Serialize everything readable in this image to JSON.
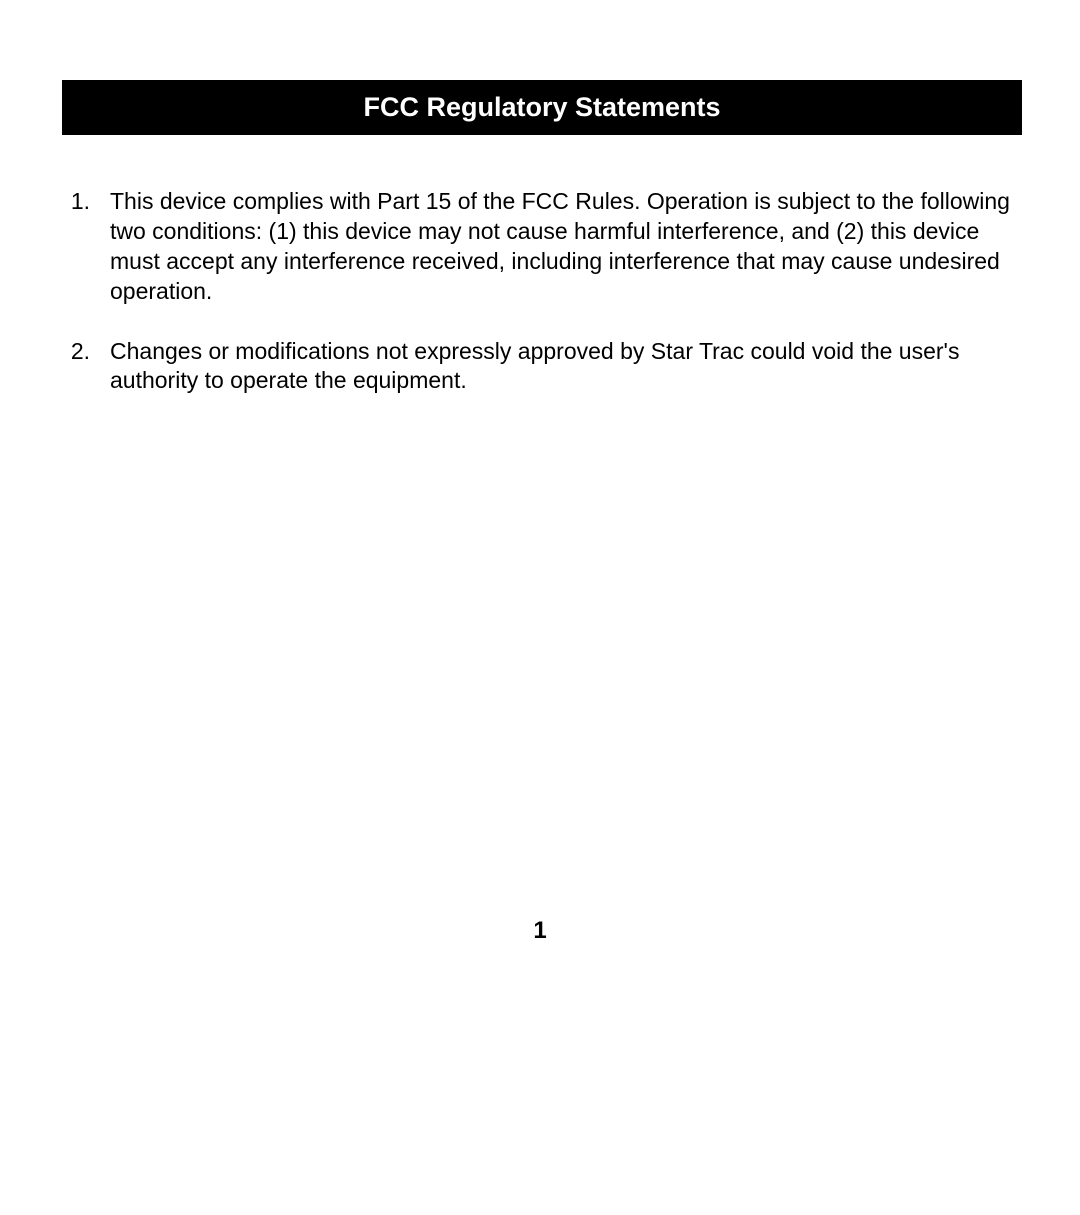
{
  "document": {
    "title": "FCC Regulatory Statements",
    "title_bar": {
      "background_color": "#000000",
      "text_color": "#ffffff",
      "font_size": 27,
      "font_weight": "bold"
    },
    "body_font_size": 23,
    "body_text_color": "#000000",
    "background_color": "#ffffff",
    "items": [
      {
        "number": "1.",
        "text": "This device complies with Part 15 of the FCC Rules. Operation is subject to the following two conditions: (1) this device may not cause harmful interference, and (2) this device must accept any interference received, including interference that may cause undesired operation."
      },
      {
        "number": "2.",
        "text": "Changes or modifications not expressly approved by Star Trac could void the user's authority to operate the equipment."
      }
    ],
    "page_number": "1",
    "page_number_style": {
      "font_size": 24,
      "font_weight": "bold"
    }
  }
}
